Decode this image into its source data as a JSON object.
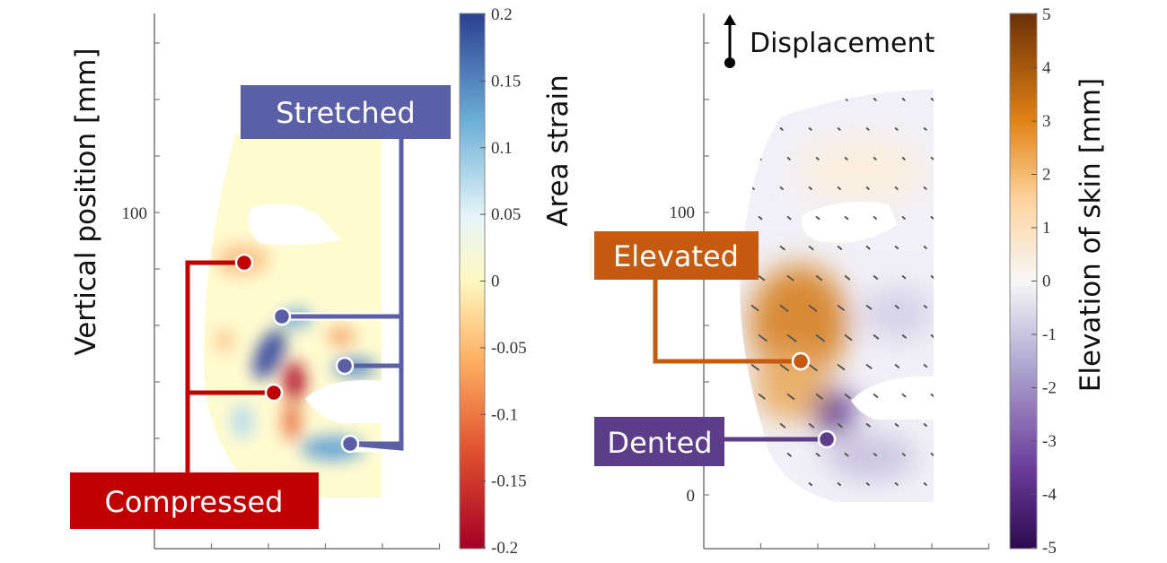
{
  "chart_data": [
    {
      "type": "heatmap",
      "panel": "left",
      "ylabel": "Vertical position [mm]",
      "ytick_labels": [
        {
          "value": 100,
          "label": "100"
        }
      ],
      "colorbar": {
        "label": "Area strain",
        "range": [
          -0.2,
          0.2
        ],
        "ticks": [
          "0.2",
          "0.15",
          "0.1",
          "0.05",
          "0",
          "-0.05",
          "-0.1",
          "-0.15",
          "-0.2"
        ],
        "colormap": [
          "#a50026",
          "#e0502f",
          "#fdae61",
          "#fff8c0",
          "#e6f5f8",
          "#6baed6",
          "#2c3f90"
        ]
      },
      "annotations": [
        {
          "label": "Stretched",
          "color": "#5a5fa6",
          "points": 3
        },
        {
          "label": "Compressed",
          "color": "#c00000",
          "points": 2
        }
      ]
    },
    {
      "type": "heatmap",
      "panel": "right",
      "ylabel": "",
      "ytick_labels": [
        {
          "value": 100,
          "label": "100"
        },
        {
          "value": 0,
          "label": "0"
        }
      ],
      "legend": {
        "label": "Displacement"
      },
      "colorbar": {
        "label": "Elevation of skin [mm]",
        "range": [
          -5,
          5
        ],
        "ticks": [
          "5",
          "4",
          "3",
          "2",
          "1",
          "0",
          "-1",
          "-2",
          "-3",
          "-4",
          "-5"
        ],
        "colormap": [
          "#3b0f5e",
          "#6a3d9a",
          "#b2abd2",
          "#f7f7f7",
          "#fdd49e",
          "#e08214",
          "#7f3b08"
        ]
      },
      "annotations": [
        {
          "label": "Elevated",
          "color": "#c55a11",
          "points": 1
        },
        {
          "label": "Dented",
          "color": "#5c3d8a",
          "points": 1
        }
      ]
    }
  ]
}
